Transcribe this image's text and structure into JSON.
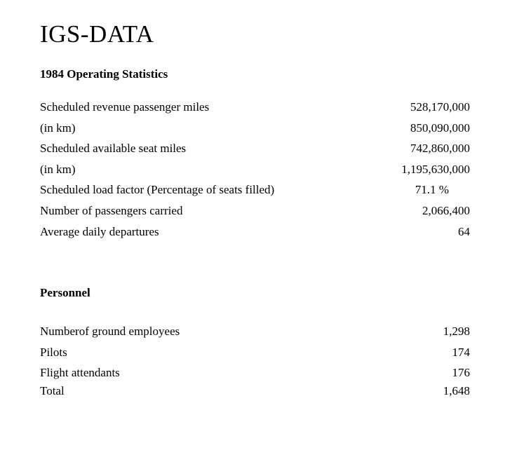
{
  "colors": {
    "background": "#ffffff",
    "text": "#000000"
  },
  "document": {
    "title": "IGS-DATA",
    "operating": {
      "heading": "1984 Operating Statistics",
      "rows": [
        {
          "label": "Scheduled revenue passenger miles",
          "value": "528,170,000"
        },
        {
          "label": "(in km)",
          "value": "850,090,000"
        },
        {
          "label": "Scheduled available seat miles",
          "value": "742,860,000"
        },
        {
          "label": "(in km)",
          "value": "1,195,630,000"
        },
        {
          "label": "Scheduled load factor (Percentage of seats filled)",
          "value": "71.1 %"
        },
        {
          "label": "Number of passengers carried",
          "value": "2,066,400"
        },
        {
          "label": "Average daily departures",
          "value": "64"
        }
      ]
    },
    "personnel": {
      "heading": "Personnel",
      "rows": [
        {
          "label": "Numberof ground employees",
          "value": "1,298"
        },
        {
          "label": "Pilots",
          "value": "174"
        },
        {
          "label": "Flight attendants",
          "value": "176"
        },
        {
          "label": "Total",
          "value": "1,648"
        }
      ]
    }
  }
}
